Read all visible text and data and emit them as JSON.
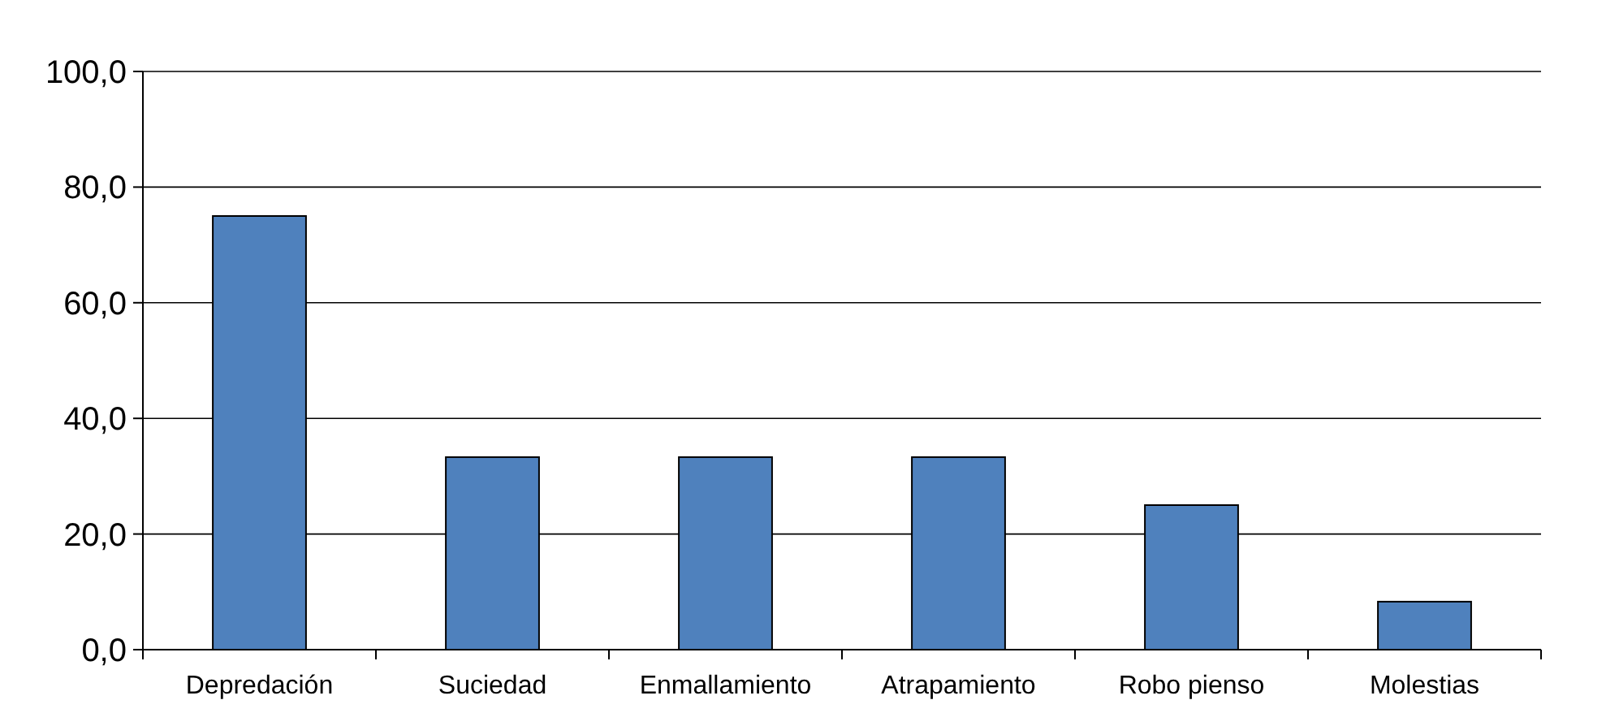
{
  "chart_data": {
    "type": "bar",
    "categories": [
      "Depredación",
      "Suciedad",
      "Enmallamiento",
      "Atrapamiento",
      "Robo pienso",
      "Molestias"
    ],
    "values": [
      75.0,
      33.3,
      33.3,
      33.3,
      25.0,
      8.3
    ],
    "color": "#4f81bd",
    "ylim": [
      0,
      100
    ],
    "yticks": [
      {
        "value": 0,
        "label": "0,0"
      },
      {
        "value": 20,
        "label": "20,0"
      },
      {
        "value": 40,
        "label": "40,0"
      },
      {
        "value": 60,
        "label": "60,0"
      },
      {
        "value": 80,
        "label": "80,0"
      },
      {
        "value": 100,
        "label": "100,0"
      }
    ],
    "grid": "y"
  }
}
